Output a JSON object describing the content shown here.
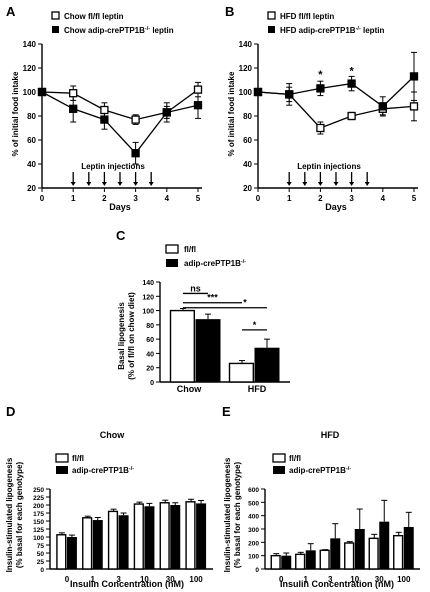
{
  "chart_data": [
    {
      "panel": "A",
      "type": "line",
      "xlabel": "Days",
      "ylabel": "% of initial food intake",
      "xlim": [
        0,
        5
      ],
      "ylim": [
        20,
        140
      ],
      "xticks": [
        0,
        1,
        2,
        3,
        4,
        5
      ],
      "yticks": [
        20,
        40,
        60,
        80,
        100,
        120,
        140
      ],
      "annotation": "Leptin injections",
      "injection_days": [
        1,
        1.5,
        2,
        2.5,
        3,
        3.5
      ],
      "series": [
        {
          "name": "Chow fl/fl leptin",
          "marker": "open-square",
          "x": [
            0,
            1,
            2,
            3,
            4,
            5
          ],
          "y": [
            100,
            99,
            85,
            77,
            83,
            102
          ],
          "err": [
            0,
            6,
            6,
            4,
            5,
            6
          ]
        },
        {
          "name": "Chow adip-crePTP1B-/- leptin",
          "marker": "filled-square",
          "x": [
            0,
            1,
            2,
            3,
            4,
            5
          ],
          "y": [
            100,
            86,
            77,
            49,
            83,
            89
          ],
          "err": [
            0,
            11,
            8,
            9,
            8,
            11
          ]
        }
      ],
      "stars": []
    },
    {
      "panel": "B",
      "type": "line",
      "xlabel": "Days",
      "ylabel": "% of initial food intake",
      "xlim": [
        0,
        5
      ],
      "ylim": [
        20,
        140
      ],
      "xticks": [
        0,
        1,
        2,
        3,
        4,
        5
      ],
      "yticks": [
        20,
        40,
        60,
        80,
        100,
        120,
        140
      ],
      "annotation": "Leptin injections",
      "injection_days": [
        1,
        1.5,
        2,
        2.5,
        3,
        3.5
      ],
      "series": [
        {
          "name": "HFD fl/fl leptin",
          "marker": "open-square",
          "x": [
            0,
            1,
            2,
            3,
            4,
            5
          ],
          "y": [
            100,
            98,
            70,
            80,
            86,
            88
          ],
          "err": [
            0,
            6,
            5,
            3,
            5,
            12
          ]
        },
        {
          "name": "HFD adip-crePTP1B-/- leptin",
          "marker": "filled-square",
          "x": [
            0,
            1,
            2,
            3,
            4,
            5
          ],
          "y": [
            100,
            98,
            103,
            107,
            88,
            113
          ],
          "err": [
            0,
            9,
            6,
            6,
            8,
            20
          ]
        }
      ],
      "stars": [
        {
          "x": 2,
          "y": 115,
          "label": "*"
        },
        {
          "x": 3,
          "y": 118,
          "label": "*"
        }
      ]
    },
    {
      "panel": "C",
      "type": "bar",
      "ylabel": "Basal lipogenesis (% of fl/fl on chow diet)",
      "ylim": [
        0,
        140
      ],
      "yticks": [
        0,
        20,
        40,
        60,
        80,
        100,
        120,
        140
      ],
      "categories": [
        "Chow",
        "HFD"
      ],
      "series": [
        {
          "name": "fl/fl",
          "fill": "open",
          "values": [
            100,
            26
          ],
          "err": [
            3,
            4
          ]
        },
        {
          "name": "adip-crePTP1B-/-",
          "fill": "filled",
          "values": [
            88,
            48
          ],
          "err": [
            7,
            12
          ]
        }
      ],
      "brackets": [
        {
          "label": "ns",
          "from": "Chow fl/fl",
          "to": "Chow adip-crePTP1B-/-"
        },
        {
          "label": "***",
          "from": "Chow fl/fl",
          "to": "HFD fl/fl"
        },
        {
          "label": "*",
          "from": "Chow fl/fl",
          "to": "HFD adip-crePTP1B-/-"
        },
        {
          "label": "*",
          "from": "HFD fl/fl",
          "to": "HFD adip-crePTP1B-/-"
        }
      ]
    },
    {
      "panel": "D",
      "type": "bar",
      "title": "Chow",
      "xlabel": "Insulin Concentration (nM)",
      "ylabel": "Insulin-stimulated lipogenesis (% basal for each genotype)",
      "ylim": [
        0,
        250
      ],
      "yticks": [
        0,
        25,
        50,
        75,
        100,
        125,
        150,
        175,
        200,
        225,
        250
      ],
      "categories": [
        "0",
        "1",
        "3",
        "10",
        "30",
        "100"
      ],
      "series": [
        {
          "name": "fl/fl",
          "fill": "open",
          "values": [
            107,
            160,
            180,
            203,
            207,
            210
          ],
          "err": [
            6,
            5,
            7,
            6,
            8,
            8
          ]
        },
        {
          "name": "adip-crePTP1B-/-",
          "fill": "filled",
          "values": [
            100,
            153,
            168,
            196,
            200,
            205
          ],
          "err": [
            6,
            8,
            7,
            9,
            7,
            9
          ]
        }
      ]
    },
    {
      "panel": "E",
      "type": "bar",
      "title": "HFD",
      "xlabel": "Insulin Concentration (nM)",
      "ylabel": "Insulin-stimulated lipogenesis (% basal for each genotype)",
      "ylim": [
        0,
        600
      ],
      "yticks": [
        0,
        100,
        200,
        300,
        400,
        500,
        600
      ],
      "categories": [
        "0",
        "1",
        "3",
        "10",
        "30",
        "100"
      ],
      "series": [
        {
          "name": "fl/fl",
          "fill": "open",
          "values": [
            100,
            110,
            140,
            195,
            230,
            250
          ],
          "err": [
            15,
            15,
            5,
            10,
            30,
            25
          ]
        },
        {
          "name": "adip-crePTP1B-/-",
          "fill": "filled",
          "values": [
            100,
            140,
            230,
            300,
            355,
            315
          ],
          "err": [
            20,
            50,
            110,
            150,
            160,
            110
          ]
        }
      ]
    }
  ],
  "labels": {
    "panel_a": "A",
    "panel_b": "B",
    "panel_c": "C",
    "panel_d": "D",
    "panel_e": "E",
    "legend_a1": "Chow fl/fl leptin",
    "legend_a2_base": "Chow adip-crePTP1B",
    "legend_b1": "HFD fl/fl leptin",
    "legend_b2_base": "HFD adip-crePTP1B",
    "legend_sup": "-/-",
    "legend_leptin": " leptin",
    "legend_flfl": "fl/fl",
    "legend_ko_base": "adip-crePTP1B",
    "ylabel_food": "% of initial food intake",
    "xlabel_days": "Days",
    "leptin_injections": "Leptin injections",
    "ylabel_c_line1": "Basal lipogenesis",
    "ylabel_c_line2": "(% of fl/fl on chow diet)",
    "cat_chow": "Chow",
    "cat_hfd": "HFD",
    "title_d": "Chow",
    "title_e": "HFD",
    "ylabel_de_line1": "Insulin-stimulated lipogenesis",
    "ylabel_de_line2": "(% basal for each genotype)",
    "xlabel_insulin": "Insulin Concentration (nM)"
  }
}
